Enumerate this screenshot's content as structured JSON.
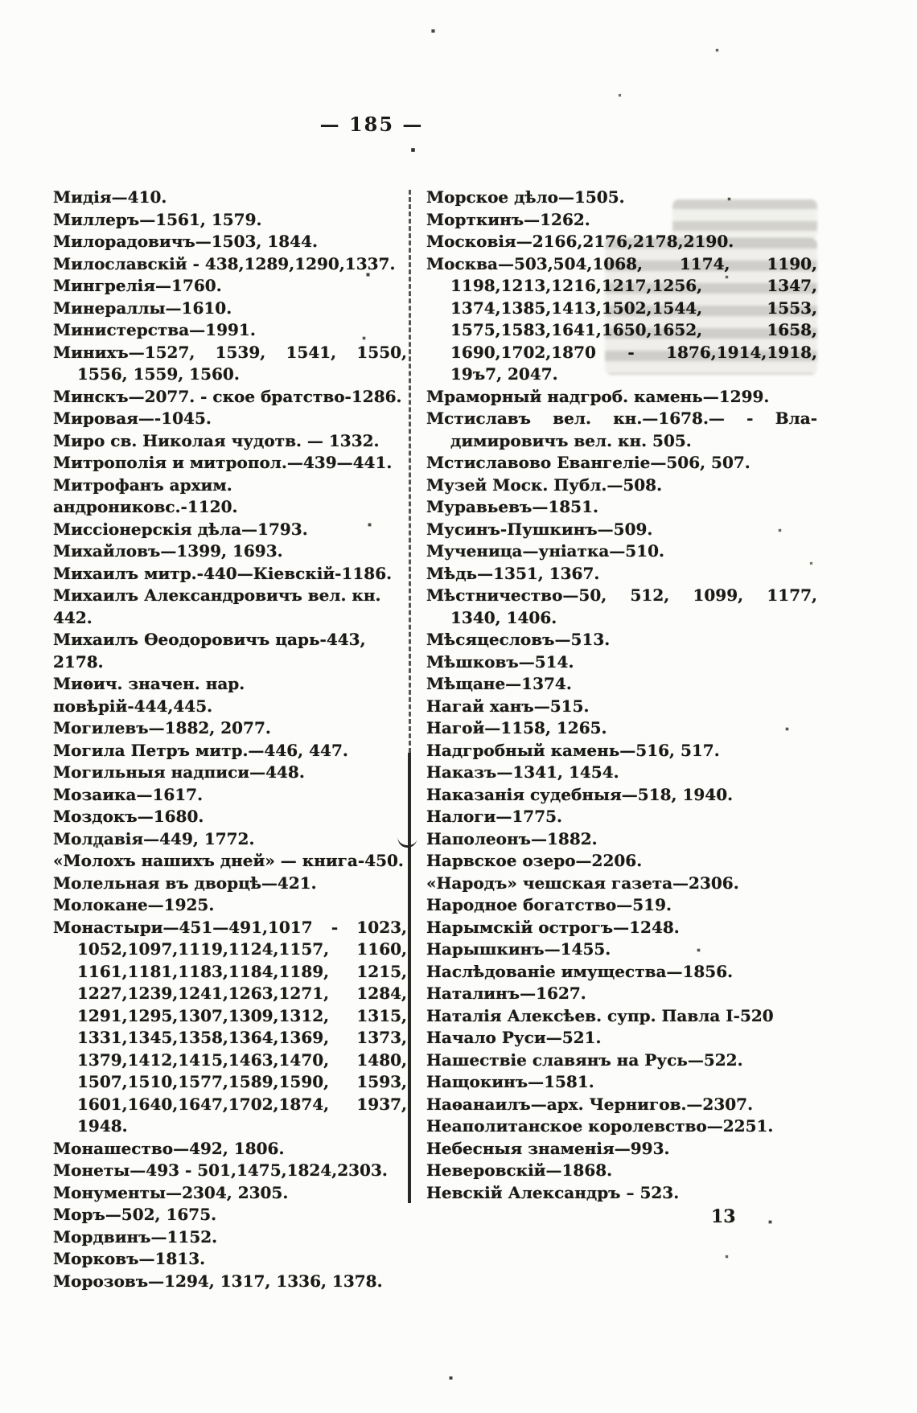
{
  "page": {
    "header": "— 185 —",
    "footer_page_number": "13"
  },
  "index": {
    "left_column": [
      [
        "Мидія—410."
      ],
      [
        "Миллеръ—1561, 1579."
      ],
      [
        "Милорадовичъ—1503, 1844."
      ],
      [
        "Милославскій - 438,1289,1290,1337."
      ],
      [
        "Мингрелія—1760."
      ],
      [
        "Минераллы—1610."
      ],
      [
        "Министерства—1991."
      ],
      [
        "Минихъ—1527, 1539, 1541, 1550,",
        "1556, 1559, 1560."
      ],
      [
        "Минскъ—2077. - ское братство-1286."
      ],
      [
        "Мировая—-1045."
      ],
      [
        "Миро св. Николая чудотв. — 1332."
      ],
      [
        "Митрополія и митропол.—439—441."
      ],
      [
        "Митрофанъ архим. андрониковс.-1120."
      ],
      [
        "Миссіонерскія дѣла—1793."
      ],
      [
        "Михайловъ—1399, 1693."
      ],
      [
        "Михаилъ митр.-440—Кіевскій-1186."
      ],
      [
        "Михаилъ Александровичъ вел. кн. 442."
      ],
      [
        "Михаилъ Ѳеодоровичъ царь-443, 2178."
      ],
      [
        "Миѳич. значен. нар. повѣрій-444,445."
      ],
      [
        "Могилевъ—1882, 2077."
      ],
      [
        "Могила Петръ митр.—446, 447."
      ],
      [
        "Могильныя надписи—448."
      ],
      [
        "Мозаика—1617."
      ],
      [
        "Моздокъ—1680."
      ],
      [
        "Молдавія—449, 1772."
      ],
      [
        "«Молохъ нашихъ дней» — книга-450."
      ],
      [
        "Молельная въ дворцѣ—421."
      ],
      [
        "Молокане—1925."
      ],
      [
        "Монастыри—451—491,1017 - 1023,",
        "1052,1097,1119,1124,1157, 1160,",
        "1161,1181,1183,1184,1189, 1215,",
        "1227,1239,1241,1263,1271, 1284,",
        "1291,1295,1307,1309,1312, 1315,",
        "1331,1345,1358,1364,1369, 1373,",
        "1379,1412,1415,1463,1470, 1480,",
        "1507,1510,1577,1589,1590, 1593,",
        "1601,1640,1647,1702,1874, 1937,",
        "1948."
      ],
      [
        "Монашество—492, 1806."
      ],
      [
        "Монеты—493 - 501,1475,1824,2303."
      ],
      [
        "Монументы—2304, 2305."
      ],
      [
        "Моръ—502, 1675."
      ],
      [
        "Мордвинъ—1152."
      ],
      [
        "Морковъ—1813."
      ],
      [
        "Морозовъ—1294, 1317, 1336, 1378."
      ]
    ],
    "right_column": [
      [
        "Морское дѣло—1505."
      ],
      [
        "Морткинъ—1262."
      ],
      [
        "Московія—2166,2176,2178,2190."
      ],
      [
        "Москва—503,504,1068, 1174, 1190,",
        "1198,1213,1216,1217,1256, 1347,",
        "1374,1385,1413,1502,1544, 1553,",
        "1575,1583,1641,1650,1652, 1658,",
        "1690,1702,1870 - 1876,1914,1918,",
        "19ъ7, 2047."
      ],
      [
        "Мраморный надгроб. камень—1299."
      ],
      [
        "Мстиславъ вел. кн.—1678.— - Вла-",
        "димировичъ вел. кн. 505."
      ],
      [
        "Мстиславово Евангеліе—506, 507."
      ],
      [
        "Музей Моск. Публ.—508."
      ],
      [
        "Муравьевъ—1851."
      ],
      [
        "Мусинъ-Пушкинъ—509."
      ],
      [
        "Мученица—уніатка—510."
      ],
      [
        "Мѣдь—1351, 1367."
      ],
      [
        "Мѣстничество—50, 512, 1099, 1177,",
        "1340, 1406."
      ],
      [
        "Мѣсяцесловъ—513."
      ],
      [
        "Мѣшковъ—514."
      ],
      [
        "Мѣщане—1374."
      ],
      [
        "Нагай ханъ—515."
      ],
      [
        "Нагой—1158, 1265."
      ],
      [
        "Надгробный камень—516, 517."
      ],
      [
        "Наказъ—1341, 1454."
      ],
      [
        "Наказанія судебныя—518, 1940."
      ],
      [
        "Налоги—1775."
      ],
      [
        "Наполеонъ—1882."
      ],
      [
        "Нарвское озеро—2206."
      ],
      [
        "«Народъ» чешская газета—2306."
      ],
      [
        "Народное богатство—519."
      ],
      [
        "Нарымскій острогъ—1248."
      ],
      [
        "Нарышкинъ—1455."
      ],
      [
        "Наслѣдованіе имущества—1856."
      ],
      [
        "Наталинъ—1627."
      ],
      [
        "Наталія Алексѣев. супр. Павла I-520"
      ],
      [
        "Начало Руси—521."
      ],
      [
        "Нашествіе славянъ на Русь—522."
      ],
      [
        "Нащокинъ—1581."
      ],
      [
        "Наѳанаилъ—арх. Чернигов.—2307."
      ],
      [
        "Неаполитанское королевство—2251."
      ],
      [
        "Небесныя знаменія—993."
      ],
      [
        "Неверовскій—1868."
      ],
      [
        "Невскій Александръ – 523."
      ]
    ]
  }
}
